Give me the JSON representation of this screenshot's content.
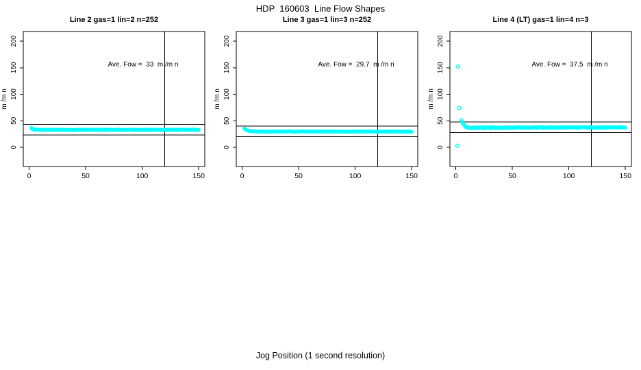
{
  "page": {
    "suptitle": "HDP  160603  Line Flow Shapes",
    "xlabel": "Jog Position (1 second resolution)"
  },
  "chart_data": {
    "type": "scatter",
    "title": "HDP  160603  Line Flow Shapes",
    "xlabel": "Jog Position (1 second resolution)",
    "ylabel": "m /m n",
    "xlim": [
      0,
      150
    ],
    "ylim": [
      0,
      200
    ],
    "xticks": [
      0,
      50,
      100,
      150
    ],
    "yticks": [
      0,
      50,
      100,
      150,
      200
    ],
    "grid": false,
    "point_color": "#00ffff",
    "axis_color": "#000000",
    "panels": [
      {
        "title": "Line 2 gas=1 lin=2 n=252",
        "annotation": "Ave. Fow =  33  m /m n",
        "ave_flow": 33,
        "n": 252,
        "vline_x": 120,
        "hlines": [
          43,
          23
        ],
        "band": {
          "x_start": 2,
          "x_end": 150,
          "points": 252,
          "jitter": 0.7,
          "profile": [
            [
              2,
              36.5
            ],
            [
              3,
              34
            ],
            [
              5,
              33
            ],
            [
              150,
              33
            ]
          ]
        },
        "outliers": []
      },
      {
        "title": "Line 3 gas=1 lin=3 n=252",
        "annotation": "Ave. Fow =  29.7  m /m n",
        "ave_flow": 29.7,
        "n": 252,
        "vline_x": 120,
        "hlines": [
          39.7,
          19.7
        ],
        "band": {
          "x_start": 2,
          "x_end": 150,
          "points": 252,
          "jitter": 0.5,
          "profile": [
            [
              2,
              35
            ],
            [
              3.5,
              33
            ],
            [
              6,
              31
            ],
            [
              10,
              29.8
            ],
            [
              150,
              29.6
            ]
          ]
        },
        "outliers": []
      },
      {
        "title": "Line 4 (LT) gas=1 lin=4 n=3",
        "annotation": "Ave. Fow =  37.5  m /m n",
        "ave_flow": 37.5,
        "n": 3,
        "vline_x": 120,
        "hlines": [
          47.5,
          27.5
        ],
        "band": {
          "x_start": 5,
          "x_end": 150,
          "points": 250,
          "jitter": 1.1,
          "profile": [
            [
              5,
              52
            ],
            [
              6,
              46
            ],
            [
              7,
              42
            ],
            [
              9,
              38.5
            ],
            [
              12,
              36.5
            ],
            [
              25,
              36.8
            ],
            [
              80,
              37.3
            ],
            [
              150,
              37.5
            ]
          ]
        },
        "outliers": [
          [
            2,
            152
          ],
          [
            3,
            74
          ],
          [
            1.5,
            3
          ]
        ]
      }
    ]
  }
}
